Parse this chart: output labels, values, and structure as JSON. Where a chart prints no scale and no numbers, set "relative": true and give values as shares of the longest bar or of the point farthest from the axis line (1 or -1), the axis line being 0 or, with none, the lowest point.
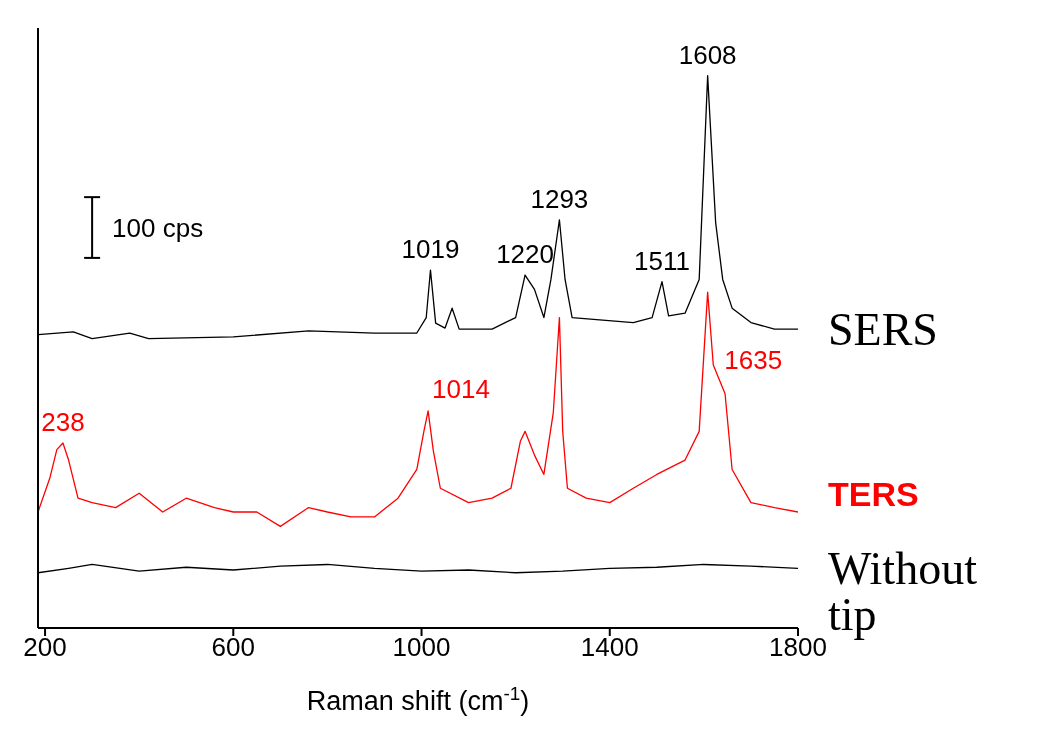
{
  "chart_data": {
    "type": "line",
    "relative": true,
    "xlabel": "Raman shift (cm$^{-1}$)",
    "xlim": [
      185,
      1800
    ],
    "xticks": [
      200,
      600,
      1000,
      1400,
      1800
    ],
    "grid": false,
    "marker": "none",
    "line_style": "solid",
    "series": [
      {
        "name": "SERS",
        "color": "#000000",
        "x": [
          185,
          260,
          300,
          380,
          420,
          600,
          760,
          900,
          990,
          1010,
          1019,
          1030,
          1050,
          1065,
          1080,
          1150,
          1200,
          1220,
          1240,
          1260,
          1275,
          1293,
          1305,
          1320,
          1450,
          1490,
          1511,
          1525,
          1560,
          1590,
          1608,
          1625,
          1640,
          1660,
          1700,
          1750,
          1800
        ],
        "values": [
          0.531,
          0.536,
          0.524,
          0.534,
          0.524,
          0.527,
          0.538,
          0.534,
          0.534,
          0.562,
          0.648,
          0.552,
          0.543,
          0.579,
          0.541,
          0.541,
          0.562,
          0.639,
          0.613,
          0.562,
          0.631,
          0.739,
          0.631,
          0.562,
          0.553,
          0.562,
          0.627,
          0.565,
          0.57,
          0.631,
          1.0,
          0.734,
          0.631,
          0.579,
          0.553,
          0.541,
          0.541
        ]
      },
      {
        "name": "TERS",
        "color": "#ff0000",
        "x": [
          185,
          210,
          225,
          238,
          250,
          270,
          300,
          350,
          400,
          450,
          500,
          560,
          600,
          650,
          700,
          760,
          800,
          850,
          900,
          950,
          990,
          1005,
          1014,
          1025,
          1040,
          1100,
          1150,
          1190,
          1210,
          1220,
          1240,
          1260,
          1280,
          1293,
          1300,
          1310,
          1350,
          1400,
          1450,
          1500,
          1560,
          1590,
          1608,
          1620,
          1635,
          1645,
          1660,
          1700,
          1750,
          1800
        ],
        "values": [
          0.21,
          0.271,
          0.323,
          0.335,
          0.304,
          0.235,
          0.227,
          0.218,
          0.244,
          0.21,
          0.235,
          0.218,
          0.21,
          0.21,
          0.184,
          0.218,
          0.21,
          0.201,
          0.201,
          0.235,
          0.287,
          0.356,
          0.393,
          0.321,
          0.253,
          0.227,
          0.235,
          0.253,
          0.338,
          0.356,
          0.313,
          0.278,
          0.39,
          0.562,
          0.356,
          0.253,
          0.235,
          0.227,
          0.253,
          0.278,
          0.304,
          0.356,
          0.608,
          0.476,
          0.445,
          0.424,
          0.287,
          0.227,
          0.218,
          0.21
        ]
      },
      {
        "name": "Without tip",
        "color": "#000000",
        "x": [
          185,
          250,
          300,
          400,
          500,
          600,
          700,
          800,
          900,
          1000,
          1100,
          1200,
          1300,
          1400,
          1500,
          1600,
          1700,
          1800
        ],
        "values": [
          0.1,
          0.108,
          0.115,
          0.103,
          0.11,
          0.105,
          0.112,
          0.115,
          0.108,
          0.103,
          0.105,
          0.1,
          0.103,
          0.108,
          0.11,
          0.115,
          0.112,
          0.108
        ]
      }
    ],
    "annotations": [
      {
        "text": "1608",
        "x": 1608,
        "y": 1.0
      },
      {
        "text": "1293",
        "x": 1293,
        "y": 0.739
      },
      {
        "text": "1511",
        "x": 1511,
        "y": 0.627
      },
      {
        "text": "1220",
        "x": 1220,
        "y": 0.639
      },
      {
        "text": "1019",
        "x": 1019,
        "y": 0.648
      },
      {
        "text": "1635",
        "x": 1635,
        "y": 0.445
      },
      {
        "text": "1014",
        "x": 1014,
        "y": 0.393
      },
      {
        "text": "238",
        "x": 238,
        "y": 0.335
      },
      "100 cps"
    ]
  }
}
